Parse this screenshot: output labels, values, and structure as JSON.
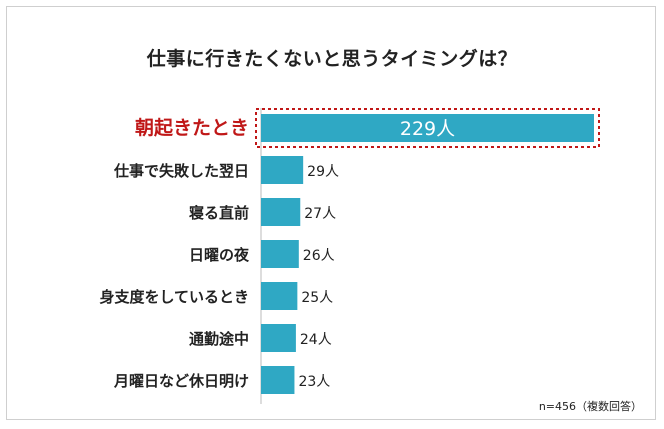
{
  "chart_data": {
    "type": "bar",
    "orientation": "horizontal",
    "title": "仕事に行きたくないと思うタイミングは？",
    "categories": [
      "朝起きたとき",
      "仕事で失敗した翌日",
      "寝る直前",
      "日曜の夜",
      "身支度をしているとき",
      "通勤途中",
      "月曜日など休日明け"
    ],
    "values": [
      229,
      29,
      27,
      26,
      25,
      24,
      23
    ],
    "data_labels": [
      "229人",
      "29人",
      "27人",
      "26人",
      "25人",
      "24人",
      "23人"
    ],
    "unit": "人",
    "highlight_index": 0,
    "xlim": [
      0,
      229
    ],
    "grid": false,
    "note": "n=456（複数回答）"
  },
  "colors": {
    "bar": "#2fa8c4",
    "highlight_text": "#c01818",
    "highlight_border": "#c01818",
    "text": "#222222",
    "axis": "#bbbbbb"
  }
}
